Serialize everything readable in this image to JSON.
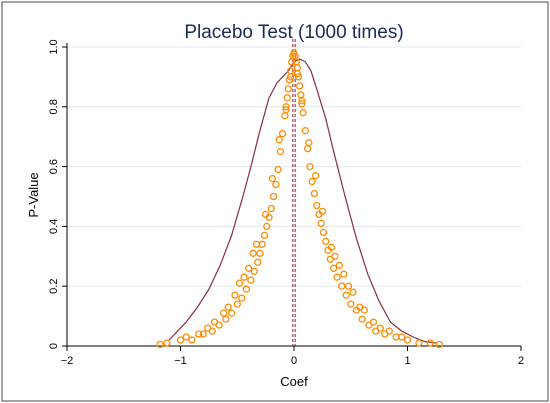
{
  "chart_data": {
    "type": "scatter",
    "title": "Placebo Test (1000 times)",
    "xlabel": "Coef",
    "ylabel": "P-Value",
    "xlim": [
      -2,
      2
    ],
    "ylim": [
      0,
      1
    ],
    "x_ticks": [
      -2,
      -1,
      0,
      1,
      2
    ],
    "x_tick_labels": [
      "−2",
      "−1",
      "0",
      "1",
      "2"
    ],
    "y_ticks": [
      0,
      0.2,
      0.4,
      0.6,
      0.8,
      1.0
    ],
    "y_tick_labels": [
      "0",
      "0.2",
      "0.4",
      "0.6",
      "0.8",
      "1.0"
    ],
    "grid": "horizontal",
    "legend": "none",
    "colors": {
      "points": "#ff8c00",
      "density_line": "#8b2e3c",
      "reference_lines": "#8b1a3a",
      "title": "#1a2a5a",
      "grid": "#e3e8ec"
    },
    "reference_lines_x": [
      -0.01,
      0.01
    ],
    "density_curve": {
      "x": [
        -1.1,
        -0.95,
        -0.85,
        -0.75,
        -0.65,
        -0.55,
        -0.45,
        -0.38,
        -0.3,
        -0.22,
        -0.15,
        -0.1,
        -0.05,
        0.0,
        0.05,
        0.1,
        0.15,
        0.2,
        0.28,
        0.35,
        0.45,
        0.55,
        0.65,
        0.75,
        0.85,
        0.95,
        1.05,
        1.15,
        1.25
      ],
      "y": [
        0.02,
        0.08,
        0.13,
        0.19,
        0.27,
        0.37,
        0.5,
        0.6,
        0.72,
        0.83,
        0.88,
        0.9,
        0.92,
        0.95,
        0.96,
        0.95,
        0.92,
        0.86,
        0.76,
        0.65,
        0.5,
        0.36,
        0.24,
        0.15,
        0.08,
        0.05,
        0.03,
        0.015,
        0.01
      ]
    },
    "points": {
      "x": [
        0.0,
        0.01,
        -0.01,
        0.02,
        -0.02,
        0.03,
        -0.03,
        0.04,
        -0.04,
        0.05,
        -0.05,
        0.06,
        -0.06,
        0.07,
        -0.07,
        0.08,
        -0.08,
        0.1,
        -0.1,
        0.12,
        -0.12,
        0.14,
        -0.14,
        0.16,
        -0.16,
        0.18,
        -0.18,
        0.2,
        -0.2,
        0.22,
        -0.22,
        0.24,
        -0.24,
        0.26,
        -0.26,
        0.28,
        -0.28,
        0.3,
        -0.3,
        0.32,
        -0.32,
        0.35,
        -0.35,
        0.38,
        -0.38,
        0.42,
        -0.42,
        0.46,
        -0.46,
        0.5,
        -0.5,
        0.55,
        -0.55,
        0.6,
        -0.6,
        0.66,
        -0.66,
        0.72,
        -0.72,
        0.8,
        -0.8,
        0.9,
        -0.9,
        1.0,
        -1.0,
        1.1,
        -1.12,
        1.2,
        1.28,
        -1.18,
        0.03,
        -0.03,
        0.07,
        -0.07,
        0.13,
        -0.13,
        0.19,
        -0.19,
        0.25,
        -0.25,
        0.33,
        -0.33,
        0.4,
        -0.4,
        0.48,
        -0.48,
        0.58,
        -0.58,
        0.7,
        -0.7,
        0.84,
        -0.84,
        0.95,
        -0.95,
        0.36,
        -0.36,
        0.44,
        -0.44,
        0.52,
        -0.52,
        0.62,
        -0.62,
        0.76,
        -0.76
      ],
      "y": [
        0.98,
        0.97,
        0.97,
        0.95,
        0.95,
        0.93,
        0.92,
        0.9,
        0.89,
        0.87,
        0.86,
        0.84,
        0.83,
        0.81,
        0.8,
        0.78,
        0.77,
        0.72,
        0.71,
        0.66,
        0.65,
        0.6,
        0.59,
        0.55,
        0.54,
        0.51,
        0.5,
        0.47,
        0.46,
        0.44,
        0.43,
        0.41,
        0.4,
        0.38,
        0.37,
        0.35,
        0.34,
        0.32,
        0.31,
        0.29,
        0.28,
        0.26,
        0.25,
        0.23,
        0.22,
        0.2,
        0.19,
        0.17,
        0.16,
        0.14,
        0.14,
        0.12,
        0.11,
        0.09,
        0.09,
        0.07,
        0.07,
        0.05,
        0.05,
        0.04,
        0.04,
        0.03,
        0.02,
        0.02,
        0.02,
        0.01,
        0.01,
        0.01,
        0.005,
        0.005,
        0.91,
        0.9,
        0.82,
        0.79,
        0.68,
        0.69,
        0.57,
        0.56,
        0.45,
        0.44,
        0.33,
        0.34,
        0.27,
        0.26,
        0.2,
        0.21,
        0.13,
        0.13,
        0.08,
        0.08,
        0.05,
        0.04,
        0.03,
        0.03,
        0.3,
        0.31,
        0.24,
        0.23,
        0.18,
        0.17,
        0.12,
        0.11,
        0.06,
        0.06
      ]
    }
  }
}
